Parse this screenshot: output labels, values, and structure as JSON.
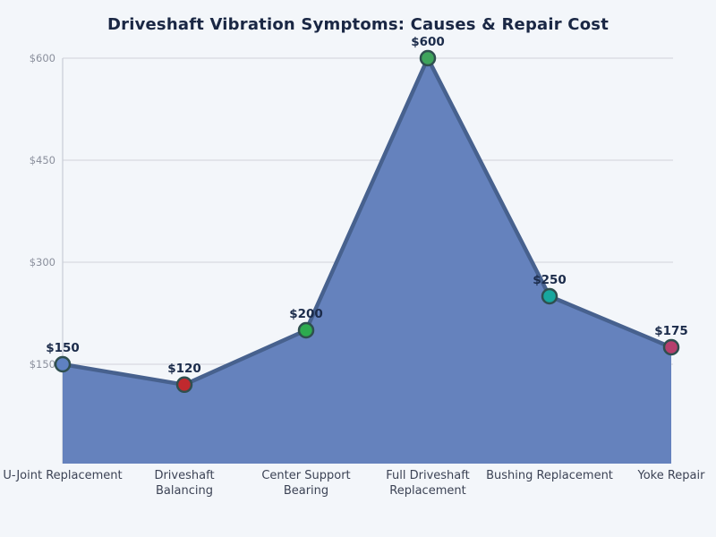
{
  "chart_data": {
    "type": "area",
    "title": "Driveshaft Vibration Symptoms: Causes & Repair Cost",
    "categories": [
      "U-Joint Replacement",
      "Driveshaft\nBalancing",
      "Center Support\nBearing",
      "Full Driveshaft\nReplacement",
      "Bushing Replacement",
      "Yoke Repair"
    ],
    "values": [
      150,
      120,
      200,
      600,
      250,
      175
    ],
    "point_labels": [
      "$150",
      "$120",
      "$200",
      "$600",
      "$250",
      "$175"
    ],
    "point_colors": [
      "#5f81c1",
      "#c0292e",
      "#2daa4f",
      "#3fa45c",
      "#17a79e",
      "#b53f6d"
    ],
    "marker_edge_color": "#2f4f4f",
    "line_color": "#47618e",
    "fill_color": "#6582bd",
    "yticks": {
      "values": [
        150,
        300,
        450,
        600
      ],
      "labels": [
        "$150",
        "$300",
        "$450",
        "$600"
      ]
    },
    "ylim": [
      0,
      600
    ],
    "xlabel": "",
    "ylabel": "",
    "grid": "horizontal",
    "legend": "none",
    "background_color": "#f3f6fa",
    "grid_color": "#d7dae1",
    "spine_color": "#c8ccd5",
    "title_color": "#1a2744",
    "tick_label_color": "#8a8f9c",
    "x_label_color": "#3c4355",
    "value_label_color": "#1b2b4a"
  }
}
